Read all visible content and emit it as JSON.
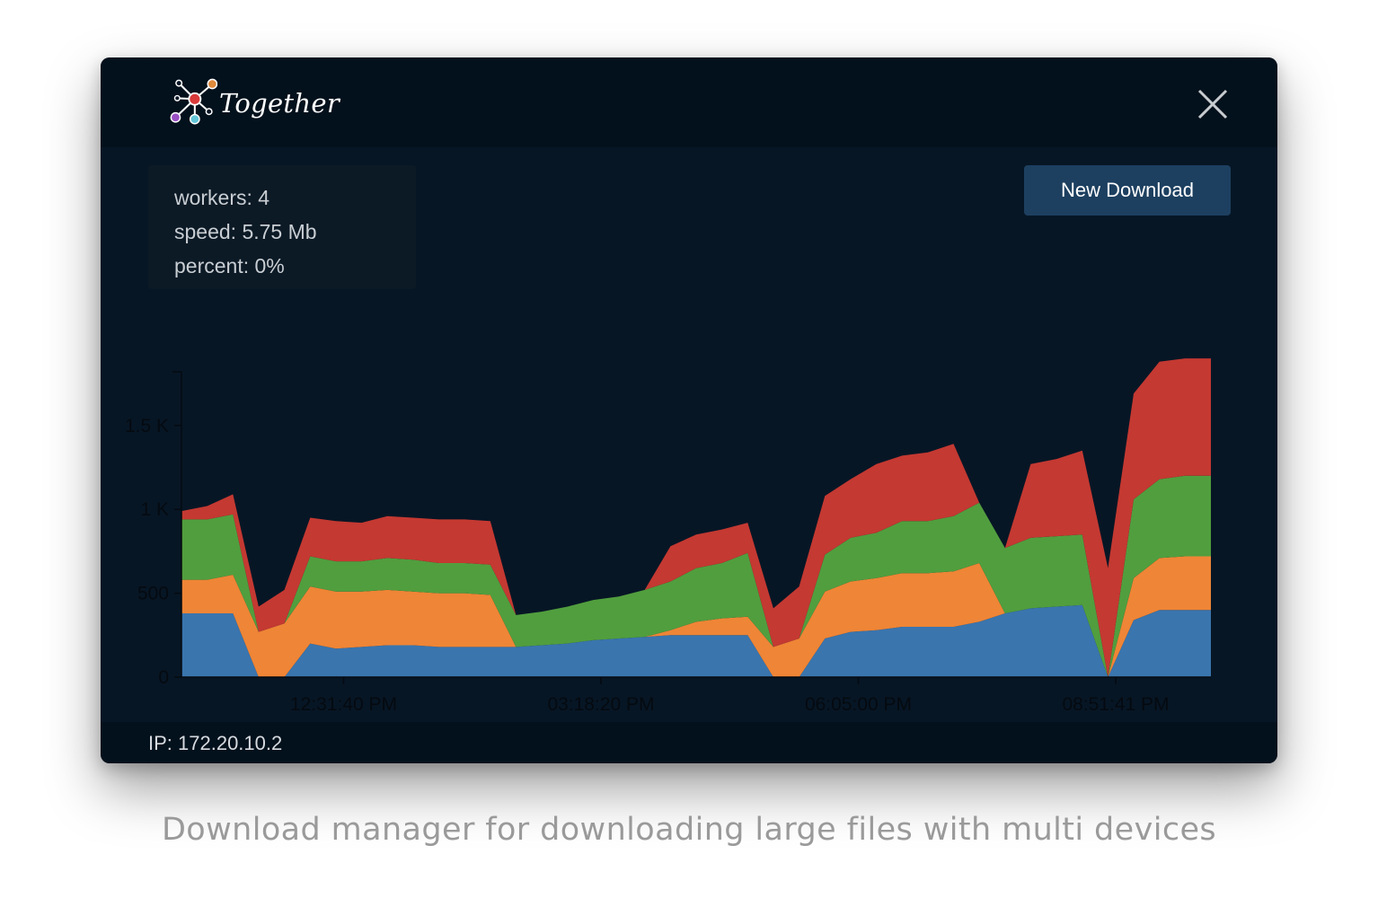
{
  "app": {
    "title": "Together",
    "icon": "together-logo-icon"
  },
  "header": {
    "close_icon": "close-icon"
  },
  "stats": {
    "workers": "workers: 4",
    "speed": "speed: 5.75 Mb",
    "percent": "percent: 0%"
  },
  "toolbar": {
    "new_download_label": "New Download"
  },
  "footer": {
    "ip": "IP: 172.20.10.2"
  },
  "caption": "Download manager for downloading large files with multi devices",
  "colors": {
    "series_blue": "#3a75ae",
    "series_orange": "#ef8536",
    "series_green": "#519e3e",
    "series_red": "#c43932",
    "button": "#1d4060",
    "window_bg": "#071625"
  },
  "chart_data": {
    "type": "area",
    "stacked": true,
    "x": [
      0,
      1,
      2,
      3,
      4,
      5,
      6,
      7,
      8,
      9,
      10,
      11,
      12,
      13,
      14,
      15,
      16,
      17,
      18,
      19,
      20,
      21,
      22,
      23,
      24,
      25,
      26,
      27,
      28,
      29,
      30,
      31,
      32,
      33,
      34,
      35,
      36,
      37,
      38,
      39,
      40
    ],
    "xticks": [
      {
        "at": 6.3,
        "label": "12:31:40 PM"
      },
      {
        "at": 16.3,
        "label": "03:18:20 PM"
      },
      {
        "at": 26.3,
        "label": "06:05:00 PM"
      },
      {
        "at": 36.3,
        "label": "08:51:41 PM"
      }
    ],
    "yticks": [
      {
        "value": 0,
        "label": "0"
      },
      {
        "value": 500,
        "label": "500"
      },
      {
        "value": 1000,
        "label": "1 K"
      },
      {
        "value": 1500,
        "label": "1.5 K"
      }
    ],
    "ylim": [
      0,
      1820
    ],
    "grid": false,
    "series": [
      {
        "color": "#3a75ae",
        "values": [
          380,
          380,
          380,
          0,
          0,
          200,
          170,
          180,
          190,
          190,
          180,
          180,
          180,
          180,
          190,
          200,
          220,
          230,
          240,
          250,
          250,
          250,
          250,
          0,
          0,
          230,
          270,
          280,
          300,
          300,
          300,
          330,
          380,
          410,
          420,
          430,
          0,
          340,
          400,
          400,
          400
        ]
      },
      {
        "color": "#ef8536",
        "values": [
          200,
          200,
          230,
          270,
          320,
          340,
          340,
          330,
          330,
          320,
          320,
          320,
          310,
          0,
          0,
          0,
          0,
          0,
          0,
          30,
          80,
          100,
          110,
          180,
          230,
          280,
          300,
          310,
          320,
          320,
          330,
          350,
          0,
          0,
          0,
          0,
          0,
          250,
          310,
          320,
          320
        ]
      },
      {
        "color": "#519e3e",
        "values": [
          360,
          360,
          360,
          0,
          0,
          180,
          180,
          180,
          190,
          190,
          180,
          180,
          180,
          190,
          200,
          220,
          240,
          250,
          280,
          290,
          320,
          330,
          380,
          0,
          0,
          220,
          260,
          270,
          310,
          310,
          330,
          360,
          390,
          420,
          420,
          420,
          0,
          470,
          470,
          480,
          480
        ]
      },
      {
        "color": "#c43932",
        "values": [
          50,
          80,
          120,
          150,
          200,
          230,
          240,
          230,
          250,
          250,
          260,
          260,
          260,
          0,
          0,
          0,
          0,
          0,
          0,
          210,
          200,
          200,
          180,
          230,
          310,
          350,
          350,
          410,
          390,
          410,
          430,
          0,
          0,
          440,
          460,
          500,
          650,
          630,
          700,
          700,
          700
        ]
      }
    ]
  }
}
